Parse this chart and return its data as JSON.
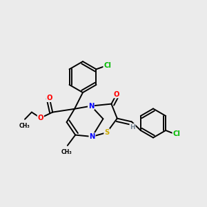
{
  "background_color": "#ebebeb",
  "fig_size": [
    3.0,
    3.0
  ],
  "dpi": 100,
  "atom_colors": {
    "C": "#000000",
    "N": "#0000ff",
    "O": "#ff0000",
    "S": "#ccaa00",
    "Cl": "#00bb00",
    "H": "#708090"
  },
  "bond_color": "#000000",
  "bond_lw": 1.4,
  "font_size": 7.2,
  "xlim": [
    0.0,
    1.0
  ],
  "ylim": [
    0.05,
    1.05
  ]
}
